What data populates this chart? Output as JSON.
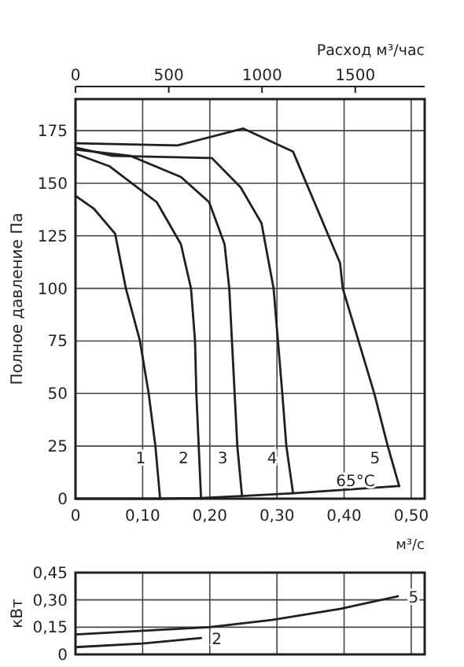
{
  "chart_data": [
    {
      "type": "line",
      "xlabel": "м³/с",
      "ylabel": "Полное давление Па",
      "x2label": "Расход м³/час",
      "xlim": [
        0,
        0.52
      ],
      "ylim": [
        0,
        190
      ],
      "xticks": [
        0,
        {
          "value": 0.1,
          "label": "0,10"
        },
        {
          "value": 0.2,
          "label": "0,20"
        },
        {
          "value": 0.3,
          "label": "0,30"
        },
        {
          "value": 0.4,
          "label": "0,40"
        },
        {
          "value": 0.5,
          "label": "0,50"
        }
      ],
      "yticks": [
        0,
        25,
        50,
        75,
        100,
        125,
        150,
        175
      ],
      "x2lim": [
        0,
        1872
      ],
      "x2ticks": [
        0,
        500,
        1000,
        1500
      ],
      "grid": true,
      "marker": "none",
      "line_style": "solid",
      "series": [
        {
          "name": "1",
          "color": "#231f20",
          "x": [
            0,
            0.027,
            0.059,
            0.075,
            0.096,
            0.109,
            0.119,
            0.126
          ],
          "values": [
            144,
            138,
            126,
            100,
            75,
            50,
            25,
            0
          ]
        },
        {
          "name": "2",
          "color": "#231f20",
          "x": [
            0,
            0.051,
            0.121,
            0.157,
            0.172,
            0.178,
            0.18,
            0.187
          ],
          "values": [
            164,
            158,
            141,
            121,
            100,
            75,
            50,
            0
          ]
        },
        {
          "name": "3",
          "color": "#231f20",
          "x": [
            0,
            0.082,
            0.157,
            0.199,
            0.222,
            0.229,
            0.237,
            0.241,
            0.248
          ],
          "values": [
            166,
            163,
            153,
            141,
            121,
            100,
            50,
            25,
            1.3
          ]
        },
        {
          "name": "4",
          "color": "#231f20",
          "x": [
            0,
            0.055,
            0.203,
            0.246,
            0.277,
            0.295,
            0.308,
            0.314,
            0.324
          ],
          "values": [
            167,
            163,
            162,
            148,
            131,
            100,
            50,
            25,
            2.6
          ]
        },
        {
          "name": "5",
          "color": "#231f20",
          "x": [
            0,
            0.152,
            0.25,
            0.324,
            0.394,
            0.398,
            0.445,
            0.465,
            0.482
          ],
          "values": [
            169,
            168,
            176,
            165,
            112,
            100,
            50,
            25,
            6
          ]
        },
        {
          "color": "#231f20",
          "x": [
            0,
            0.126,
            0.187,
            0.248,
            0.324,
            0.482
          ],
          "values": [
            0,
            0,
            0.3,
            1.3,
            2.6,
            6
          ]
        }
      ],
      "annotations": [
        "65°C"
      ]
    },
    {
      "type": "line",
      "ylabel": "кВт",
      "xlim": [
        0,
        0.52
      ],
      "ylim": [
        0,
        0.45
      ],
      "xticks": [
        {
          "value": 0.1,
          "label": null
        },
        {
          "value": 0.2,
          "label": null
        },
        {
          "value": 0.3,
          "label": null
        },
        {
          "value": 0.4,
          "label": null
        },
        {
          "value": 0.5,
          "label": null
        }
      ],
      "yticks": [
        0,
        {
          "value": 0.15,
          "label": "0,15"
        },
        {
          "value": 0.3,
          "label": "0,30"
        },
        {
          "value": 0.45,
          "label": "0,45"
        }
      ],
      "tick_labels": "y",
      "grid": true,
      "marker": "none",
      "line_style": "solid",
      "series": [
        {
          "name": "2",
          "color": "#231f20",
          "x": [
            0,
            0.1,
            0.187
          ],
          "values": [
            0.04,
            0.06,
            0.09
          ]
        },
        {
          "name": "5",
          "color": "#231f20",
          "x": [
            0,
            0.199,
            0.293,
            0.394,
            0.48
          ],
          "values": [
            0.11,
            0.15,
            0.19,
            0.25,
            0.32
          ]
        }
      ]
    }
  ]
}
